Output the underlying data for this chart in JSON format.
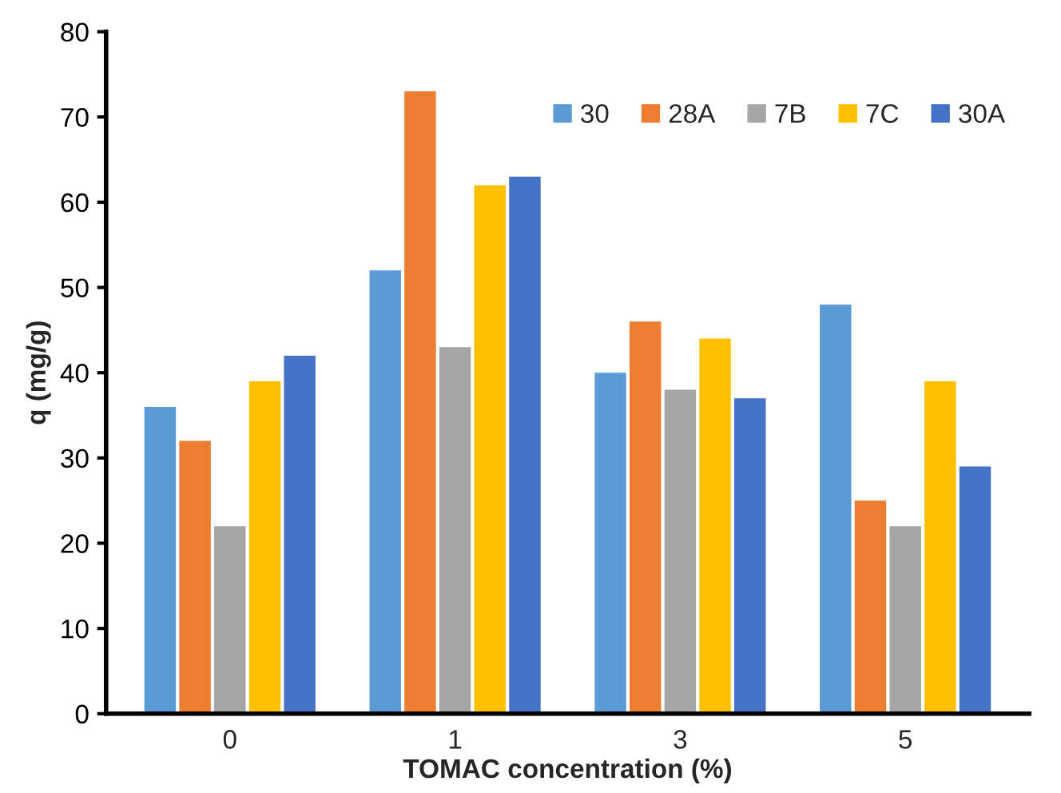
{
  "chart_data": {
    "type": "bar",
    "xlabel": "TOMAC concentration (%)",
    "ylabel": "q (mg/g)",
    "categories": [
      "0",
      "1",
      "3",
      "5"
    ],
    "series": [
      {
        "name": "30",
        "color": "#5b9bd5",
        "values": [
          36,
          52,
          40,
          48
        ]
      },
      {
        "name": "28A",
        "color": "#ed7d31",
        "values": [
          32,
          73,
          46,
          25
        ]
      },
      {
        "name": "7B",
        "color": "#a5a5a5",
        "values": [
          22,
          43,
          38,
          22
        ]
      },
      {
        "name": "7C",
        "color": "#ffc000",
        "values": [
          39,
          62,
          44,
          39
        ]
      },
      {
        "name": "30A",
        "color": "#4472c4",
        "values": [
          42,
          63,
          37,
          29
        ]
      }
    ],
    "ylim": [
      0,
      80
    ],
    "yticks": [
      0,
      10,
      20,
      30,
      40,
      50,
      60,
      70,
      80
    ],
    "grid": false,
    "legend": "top right"
  }
}
